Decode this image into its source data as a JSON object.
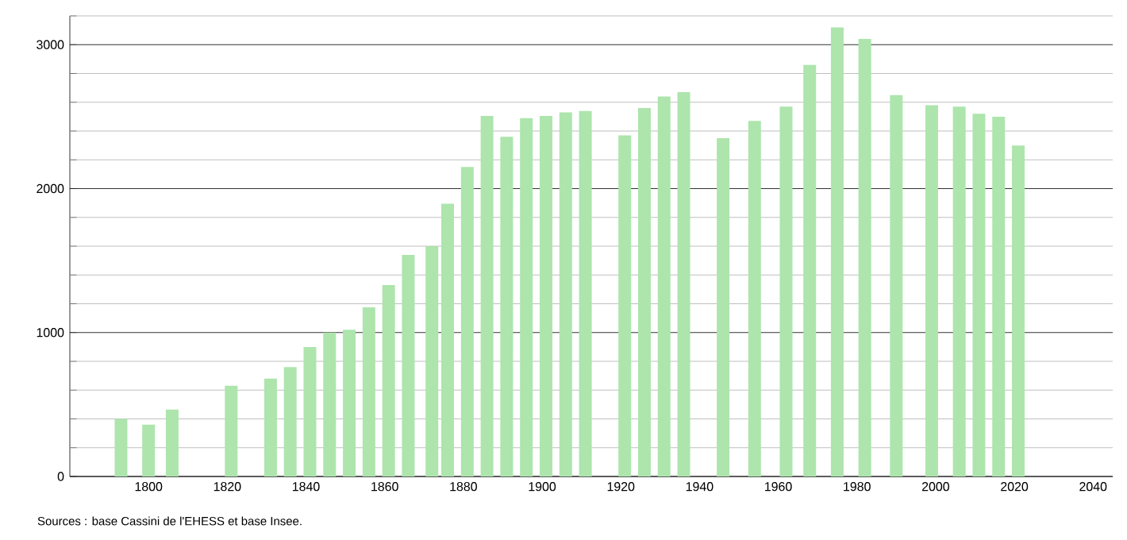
{
  "chart_data": {
    "type": "bar",
    "x": [
      1793,
      1800,
      1806,
      1821,
      1831,
      1836,
      1841,
      1846,
      1851,
      1856,
      1861,
      1866,
      1872,
      1876,
      1881,
      1886,
      1891,
      1896,
      1901,
      1906,
      1911,
      1921,
      1926,
      1931,
      1936,
      1946,
      1954,
      1962,
      1968,
      1975,
      1982,
      1990,
      1999,
      2006,
      2011,
      2016,
      2021
    ],
    "values": [
      400,
      360,
      465,
      630,
      680,
      760,
      900,
      1000,
      1020,
      1175,
      1330,
      1540,
      1600,
      1895,
      2150,
      2505,
      2360,
      2490,
      2505,
      2530,
      2540,
      2370,
      2560,
      2640,
      2670,
      2350,
      2470,
      2570,
      2860,
      3120,
      3040,
      2650,
      2580,
      2570,
      2520,
      2500,
      2300
    ],
    "color": "#ade5ad",
    "xlim": [
      1780,
      2045
    ],
    "xticks": [
      1800,
      1820,
      1840,
      1860,
      1880,
      1900,
      1920,
      1940,
      1960,
      1980,
      2000,
      2020,
      2040
    ],
    "ylim": [
      0,
      3200
    ],
    "yticks": [
      0,
      {
        "value": 200,
        "label": null
      },
      {
        "value": 400,
        "label": null
      },
      {
        "value": 600,
        "label": null
      },
      {
        "value": 800,
        "label": null
      },
      1000,
      {
        "value": 1200,
        "label": null
      },
      {
        "value": 1400,
        "label": null
      },
      {
        "value": 1600,
        "label": null
      },
      {
        "value": 1800,
        "label": null
      },
      2000,
      {
        "value": 2200,
        "label": null
      },
      {
        "value": 2400,
        "label": null
      },
      {
        "value": 2600,
        "label": null
      },
      {
        "value": 2800,
        "label": null
      },
      3000,
      {
        "value": 3200,
        "label": null
      }
    ],
    "grid": "y",
    "annotations": [
      "Sources : base Cassini de l'EHESS et base Insee."
    ]
  }
}
